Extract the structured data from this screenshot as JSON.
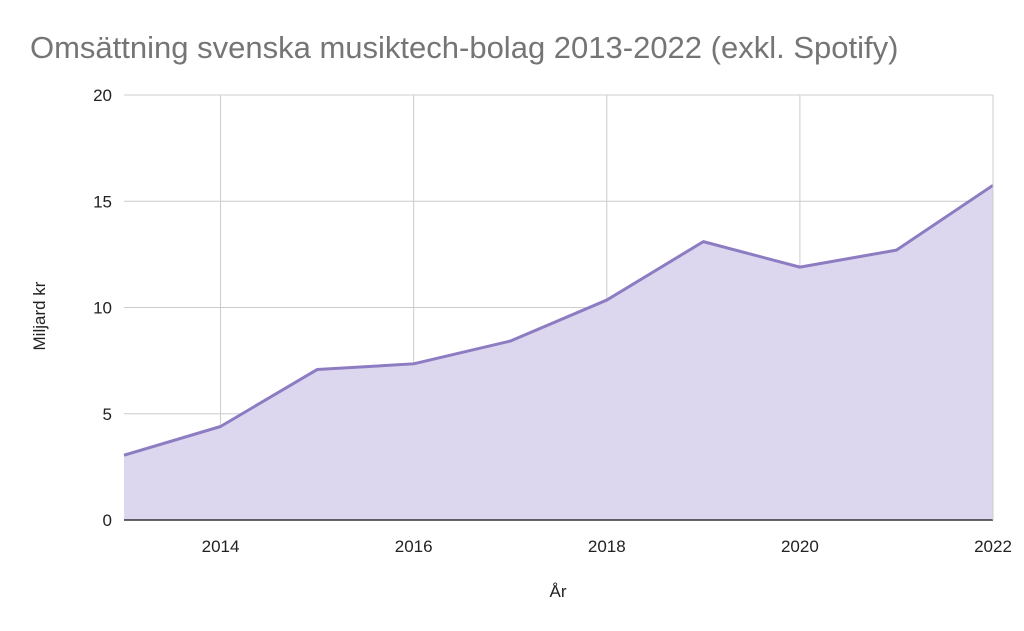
{
  "chart_data": {
    "type": "area",
    "title": "Omsättning svenska musiktech-bolag 2013-2022 (exkl. Spotify)",
    "xlabel": "År",
    "ylabel": "Miljard kr",
    "x": [
      2013,
      2014,
      2015,
      2016,
      2017,
      2018,
      2019,
      2020,
      2021,
      2022
    ],
    "x_ticks": [
      "2014",
      "2016",
      "2018",
      "2020",
      "2022"
    ],
    "y_ticks": [
      "0",
      "5",
      "10",
      "15",
      "20"
    ],
    "xlim": [
      2013,
      2022
    ],
    "ylim": [
      0,
      20
    ],
    "grid": true,
    "legend": "none",
    "series": [
      {
        "values": [
          3.05,
          4.4,
          7.08,
          7.35,
          8.42,
          10.35,
          13.1,
          11.9,
          12.7,
          15.75
        ],
        "line_color": "#8e7cc3",
        "fill_color": "#dcd7ee"
      }
    ]
  }
}
